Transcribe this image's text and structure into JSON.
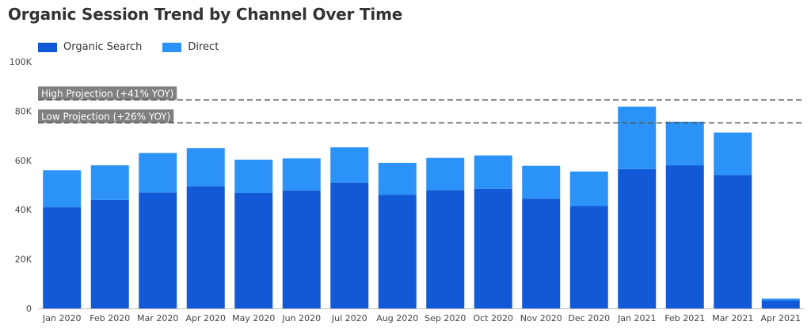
{
  "chart_data": {
    "type": "bar",
    "stacked": true,
    "title": "Organic Session Trend by Channel Over Time",
    "xlabel": "",
    "ylabel": "",
    "ylim": [
      0,
      100000
    ],
    "yticks": [
      {
        "value": 0,
        "label": "0"
      },
      {
        "value": 20000,
        "label": "20K"
      },
      {
        "value": 40000,
        "label": "40K"
      },
      {
        "value": 60000,
        "label": "60K"
      },
      {
        "value": 80000,
        "label": "80K"
      },
      {
        "value": 100000,
        "label": "100K"
      }
    ],
    "categories": [
      "Jan 2020",
      "Feb 2020",
      "Mar 2020",
      "Apr 2020",
      "May 2020",
      "Jun 2020",
      "Jul 2020",
      "Aug 2020",
      "Sep 2020",
      "Oct 2020",
      "Nov 2020",
      "Dec 2020",
      "Jan 2021",
      "Feb 2021",
      "Mar 2021",
      "Apr 2021"
    ],
    "series": [
      {
        "name": "Organic Search",
        "color": "#1259d8",
        "values": [
          41000,
          44000,
          47000,
          49500,
          46800,
          47800,
          51000,
          46000,
          48000,
          48500,
          44500,
          41500,
          56500,
          58000,
          54000,
          3200
        ]
      },
      {
        "name": "Direct",
        "color": "#2b93f7",
        "values": [
          15000,
          14000,
          16000,
          15500,
          13500,
          13000,
          14300,
          13000,
          13000,
          13500,
          13300,
          14000,
          25300,
          17700,
          17300,
          800
        ]
      }
    ],
    "reference_lines": [
      {
        "label": "High Projection (+41% YOY)",
        "value": 84500
      },
      {
        "label": "Low Projection (+26% YOY)",
        "value": 75200
      }
    ],
    "grid": false,
    "legend_position": "top-left",
    "label_box_color": "#808080"
  }
}
